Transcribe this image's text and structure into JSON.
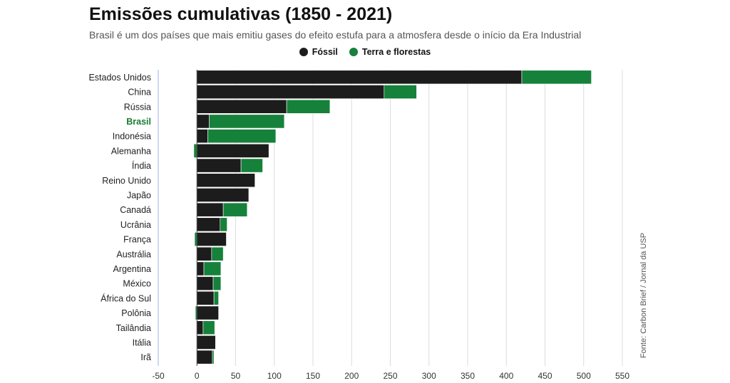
{
  "chart_data": {
    "type": "bar",
    "stacked": true,
    "orientation": "horizontal",
    "title": "Emissões cumulativas (1850 - 2021)",
    "subtitle": "Brasil é um dos países que mais emitiu gases do efeito estufa para a atmosfera desde o início da Era Industrial",
    "source": "Fonte: Carbon Brief / Jornal da USP",
    "xlim": [
      -50,
      550
    ],
    "xticks": [
      -50,
      0,
      50,
      100,
      150,
      200,
      250,
      300,
      350,
      400,
      450,
      500,
      550
    ],
    "grid": true,
    "legend_position": "top",
    "highlight_category": "Brasil",
    "highlight_color": "#1a7a32",
    "categories": [
      "Estados Unidos",
      "China",
      "Rússia",
      "Brasil",
      "Indonésia",
      "Alemanha",
      "Índia",
      "Reino Unido",
      "Japão",
      "Canadá",
      "Ucrânia",
      "França",
      "Austrália",
      "Argentina",
      "México",
      "África do Sul",
      "Polônia",
      "Tailândia",
      "Itália",
      "Irã"
    ],
    "series": [
      {
        "name": "Fóssil",
        "color": "#1c1c1c",
        "values": [
          420,
          242,
          116,
          16,
          14,
          93,
          57,
          75,
          67,
          34,
          30,
          38,
          19,
          9,
          21,
          22,
          28,
          8,
          24,
          20
        ]
      },
      {
        "name": "Terra e florestas",
        "color": "#16813a",
        "values": [
          90,
          42,
          56,
          97,
          88,
          -4,
          28,
          0,
          0,
          31,
          9,
          -3,
          15,
          22,
          10,
          6,
          -2,
          15,
          0,
          2
        ]
      }
    ]
  }
}
